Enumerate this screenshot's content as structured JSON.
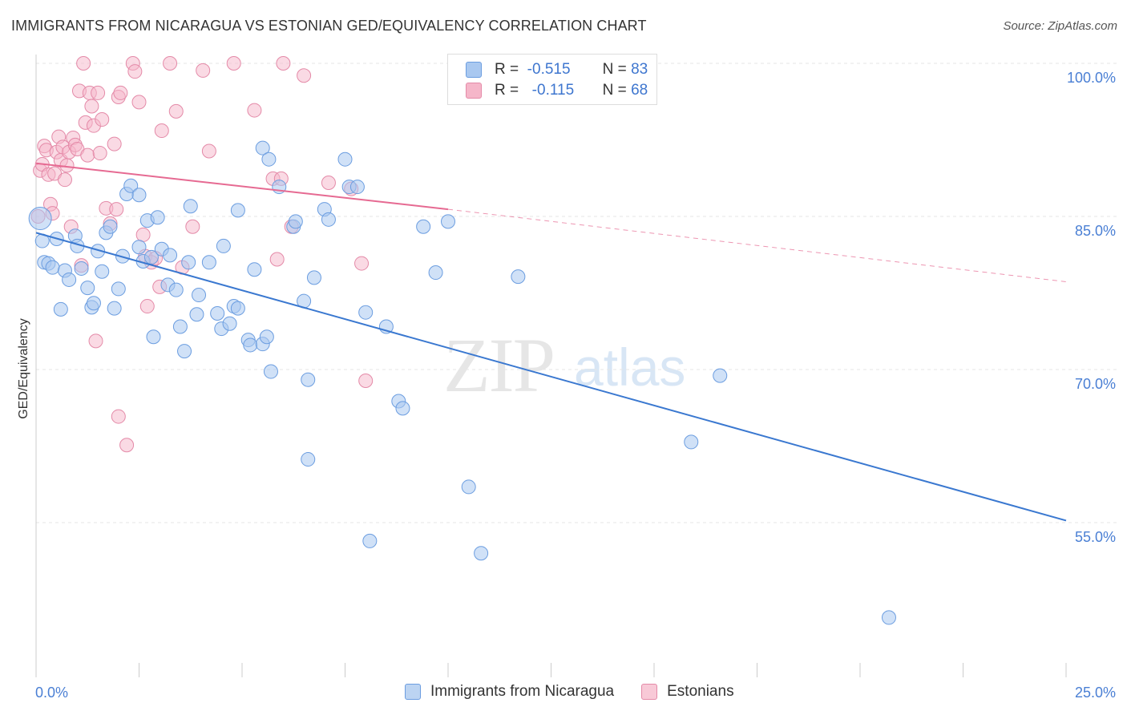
{
  "title": "IMMIGRANTS FROM NICARAGUA VS ESTONIAN GED/EQUIVALENCY CORRELATION CHART",
  "source": "Source: ZipAtlas.com",
  "watermark": {
    "zip": "ZIP",
    "atlas": "atlas"
  },
  "legend": {
    "rows": [
      {
        "r_label": "R =",
        "r_value": "-0.515",
        "n_label": "N =",
        "n_value": "83"
      },
      {
        "r_label": "R =",
        "r_value": "-0.115",
        "n_label": "N =",
        "n_value": "68"
      }
    ]
  },
  "bottom_legend": {
    "series1": "Immigrants from Nicaragua",
    "series2": "Estonians"
  },
  "colors": {
    "blue_fill": "#a9c8f0",
    "blue_stroke": "#6b9de0",
    "blue_line": "#3a78d0",
    "pink_fill": "#f5b6c9",
    "pink_stroke": "#e48aa8",
    "pink_line": "#e66a92",
    "tick": "#4a7fd4",
    "grid": "#e5e5e5"
  },
  "chart_data": {
    "type": "scatter",
    "title": "IMMIGRANTS FROM NICARAGUA VS ESTONIAN GED/EQUIVALENCY CORRELATION CHART",
    "xlabel": "",
    "ylabel": "GED/Equivalency",
    "xlim": [
      0,
      25
    ],
    "ylim": [
      40.0,
      103.0
    ],
    "x_tick_labels": [
      "0.0%",
      "25.0%"
    ],
    "y_ticks": [
      55.0,
      70.0,
      85.0,
      100.0
    ],
    "y_tick_labels": [
      "55.0%",
      "70.0%",
      "85.0%",
      "100.0%"
    ],
    "grid": true,
    "legend_position": "top-center",
    "series": [
      {
        "name": "Immigrants from Nicaragua",
        "color": "#a9c8f0",
        "trend": {
          "x": [
            0.0,
            25.0
          ],
          "y": [
            83.4,
            55.2
          ],
          "dashed_to": null
        },
        "points": [
          [
            0.1,
            84.8
          ],
          [
            0.15,
            82.6
          ],
          [
            0.2,
            80.5
          ],
          [
            0.3,
            80.4
          ],
          [
            0.4,
            80.0
          ],
          [
            0.5,
            82.8
          ],
          [
            0.6,
            75.9
          ],
          [
            0.7,
            79.7
          ],
          [
            0.8,
            78.8
          ],
          [
            0.95,
            83.1
          ],
          [
            1.0,
            82.1
          ],
          [
            1.1,
            79.9
          ],
          [
            1.25,
            78.0
          ],
          [
            1.35,
            76.1
          ],
          [
            1.4,
            76.5
          ],
          [
            1.5,
            81.6
          ],
          [
            1.6,
            79.6
          ],
          [
            1.7,
            83.4
          ],
          [
            1.8,
            84.0
          ],
          [
            1.9,
            76.0
          ],
          [
            2.0,
            77.9
          ],
          [
            2.1,
            81.1
          ],
          [
            2.2,
            87.2
          ],
          [
            2.3,
            88.0
          ],
          [
            2.5,
            82.0
          ],
          [
            2.5,
            87.1
          ],
          [
            2.6,
            80.6
          ],
          [
            2.7,
            84.6
          ],
          [
            2.8,
            81.0
          ],
          [
            2.85,
            73.2
          ],
          [
            2.95,
            84.9
          ],
          [
            3.05,
            81.8
          ],
          [
            3.2,
            78.3
          ],
          [
            3.25,
            81.2
          ],
          [
            3.4,
            77.8
          ],
          [
            3.5,
            74.2
          ],
          [
            3.6,
            71.8
          ],
          [
            3.7,
            80.5
          ],
          [
            3.75,
            86.0
          ],
          [
            3.9,
            75.4
          ],
          [
            3.95,
            77.3
          ],
          [
            4.2,
            80.5
          ],
          [
            4.4,
            75.5
          ],
          [
            4.5,
            74.0
          ],
          [
            4.55,
            82.1
          ],
          [
            4.7,
            74.5
          ],
          [
            4.8,
            76.2
          ],
          [
            4.9,
            76.0
          ],
          [
            4.9,
            85.6
          ],
          [
            5.15,
            72.9
          ],
          [
            5.2,
            72.4
          ],
          [
            5.3,
            79.8
          ],
          [
            5.5,
            91.7
          ],
          [
            5.5,
            72.5
          ],
          [
            5.6,
            73.2
          ],
          [
            5.65,
            90.6
          ],
          [
            5.7,
            69.8
          ],
          [
            5.9,
            87.9
          ],
          [
            6.25,
            84.0
          ],
          [
            6.3,
            84.5
          ],
          [
            6.5,
            76.7
          ],
          [
            6.6,
            69.0
          ],
          [
            6.6,
            61.2
          ],
          [
            6.75,
            79.0
          ],
          [
            7.0,
            85.7
          ],
          [
            7.1,
            84.7
          ],
          [
            7.5,
            90.6
          ],
          [
            7.6,
            87.9
          ],
          [
            7.8,
            87.9
          ],
          [
            8.0,
            75.6
          ],
          [
            8.1,
            53.2
          ],
          [
            8.5,
            74.2
          ],
          [
            8.8,
            66.9
          ],
          [
            8.9,
            66.2
          ],
          [
            9.4,
            84.0
          ],
          [
            9.7,
            79.5
          ],
          [
            10.0,
            84.5
          ],
          [
            10.5,
            58.5
          ],
          [
            10.8,
            52.0
          ],
          [
            11.7,
            79.1
          ],
          [
            15.9,
            62.9
          ],
          [
            16.6,
            69.4
          ],
          [
            20.7,
            45.7
          ]
        ]
      },
      {
        "name": "Estonians",
        "color": "#f5b6c9",
        "trend": {
          "x": [
            0.0,
            10.0
          ],
          "y": [
            90.2,
            85.7
          ],
          "dashed_to": [
            25.0,
            78.6
          ]
        },
        "points": [
          [
            0.05,
            85.0
          ],
          [
            0.1,
            89.5
          ],
          [
            0.15,
            90.1
          ],
          [
            0.2,
            91.9
          ],
          [
            0.25,
            91.5
          ],
          [
            0.3,
            89.1
          ],
          [
            0.35,
            86.2
          ],
          [
            0.4,
            85.3
          ],
          [
            0.45,
            89.2
          ],
          [
            0.5,
            91.3
          ],
          [
            0.55,
            92.8
          ],
          [
            0.6,
            90.5
          ],
          [
            0.65,
            91.8
          ],
          [
            0.7,
            88.6
          ],
          [
            0.75,
            90.0
          ],
          [
            0.8,
            91.3
          ],
          [
            0.85,
            84.0
          ],
          [
            0.9,
            92.7
          ],
          [
            0.95,
            92.0
          ],
          [
            1.0,
            91.6
          ],
          [
            1.05,
            97.3
          ],
          [
            1.1,
            80.2
          ],
          [
            1.15,
            100.0
          ],
          [
            1.2,
            94.2
          ],
          [
            1.25,
            91.0
          ],
          [
            1.3,
            97.1
          ],
          [
            1.35,
            95.8
          ],
          [
            1.4,
            93.9
          ],
          [
            1.45,
            72.8
          ],
          [
            1.5,
            97.1
          ],
          [
            1.55,
            91.2
          ],
          [
            1.6,
            94.5
          ],
          [
            1.7,
            85.8
          ],
          [
            1.8,
            84.3
          ],
          [
            1.9,
            92.1
          ],
          [
            1.95,
            85.7
          ],
          [
            2.0,
            96.7
          ],
          [
            2.0,
            65.4
          ],
          [
            2.05,
            97.1
          ],
          [
            2.2,
            62.6
          ],
          [
            2.35,
            100.0
          ],
          [
            2.4,
            99.2
          ],
          [
            2.5,
            96.2
          ],
          [
            2.6,
            83.2
          ],
          [
            2.65,
            81.1
          ],
          [
            2.7,
            76.2
          ],
          [
            2.8,
            80.5
          ],
          [
            2.9,
            80.9
          ],
          [
            3.0,
            78.1
          ],
          [
            3.05,
            93.4
          ],
          [
            3.25,
            100.0
          ],
          [
            3.4,
            95.3
          ],
          [
            3.55,
            80.0
          ],
          [
            3.8,
            84.0
          ],
          [
            4.05,
            99.3
          ],
          [
            4.2,
            91.4
          ],
          [
            4.8,
            100.0
          ],
          [
            5.3,
            95.4
          ],
          [
            5.75,
            88.7
          ],
          [
            5.85,
            80.8
          ],
          [
            5.95,
            88.7
          ],
          [
            6.0,
            100.0
          ],
          [
            6.2,
            84.0
          ],
          [
            6.5,
            98.8
          ],
          [
            7.1,
            88.3
          ],
          [
            7.65,
            87.7
          ],
          [
            7.9,
            80.4
          ],
          [
            8.0,
            68.9
          ]
        ]
      }
    ]
  }
}
